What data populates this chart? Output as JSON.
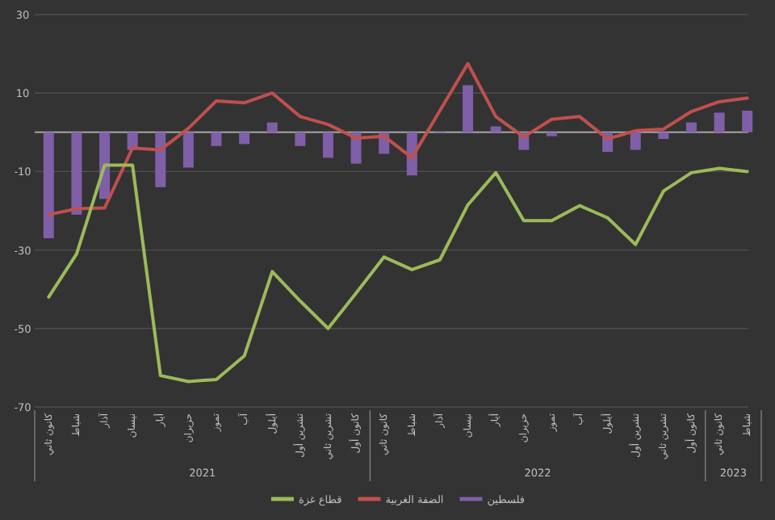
{
  "chart_data": {
    "type": "bar",
    "categories": [
      "كانون ثاني",
      "شباط",
      "آذار",
      "نيسان",
      "أيار",
      "حزيران",
      "تموز",
      "آب",
      "أيلول",
      "تشرين أول",
      "تشرين ثاني",
      "كانون أول",
      "كانون ثاني",
      "شباط",
      "آذار",
      "نيسان",
      "أيار",
      "حزيران",
      "تموز",
      "آب",
      "أيلول",
      "تشرين أول",
      "تشرين ثاني",
      "كانون أول",
      "كانون ثاني",
      "شباط"
    ],
    "series": [
      {
        "name": "فلسطين",
        "color": "#7f5fa8",
        "values": [
          -27,
          -21,
          -17,
          -4.5,
          -14,
          -9,
          -3.5,
          -3,
          2.5,
          -3.5,
          -6.5,
          -8,
          -5.5,
          -11,
          -0.3,
          12,
          1.5,
          -4.5,
          -1,
          0,
          -5,
          -4.5,
          -1.7,
          2.5,
          5,
          5.5
        ]
      },
      {
        "name": "الضفة الغربية",
        "type": "line",
        "color": "#c0504d",
        "values": [
          -21,
          -19.5,
          -19.3,
          -4,
          -4.5,
          1,
          8,
          7.5,
          10,
          4,
          2,
          -1.5,
          -1,
          -6.5,
          5.5,
          17.5,
          4,
          -1.2,
          3.3,
          4,
          -1.7,
          0.4,
          0.8,
          5.3,
          7.8,
          8.7
        ]
      },
      {
        "name": "قطاع غزة",
        "type": "line",
        "color": "#9bbb59",
        "values": [
          -42,
          -31,
          -8.4,
          -8.4,
          -62,
          -63.5,
          -63,
          -57,
          -35.5,
          -43,
          -50,
          -41,
          -31.8,
          -35,
          -32.5,
          -18.5,
          -10.3,
          -22.5,
          -22.5,
          -18.7,
          -21.8,
          -28.6,
          -15,
          -10.3,
          -9.2,
          -10
        ]
      }
    ],
    "ylim": [
      -70,
      30
    ],
    "yticks": [
      -70,
      -50,
      -30,
      -10,
      10,
      30
    ],
    "grid": "y",
    "legend": "bottom",
    "marker": "none",
    "annotations": [
      "2021",
      "2022",
      "2023"
    ]
  }
}
